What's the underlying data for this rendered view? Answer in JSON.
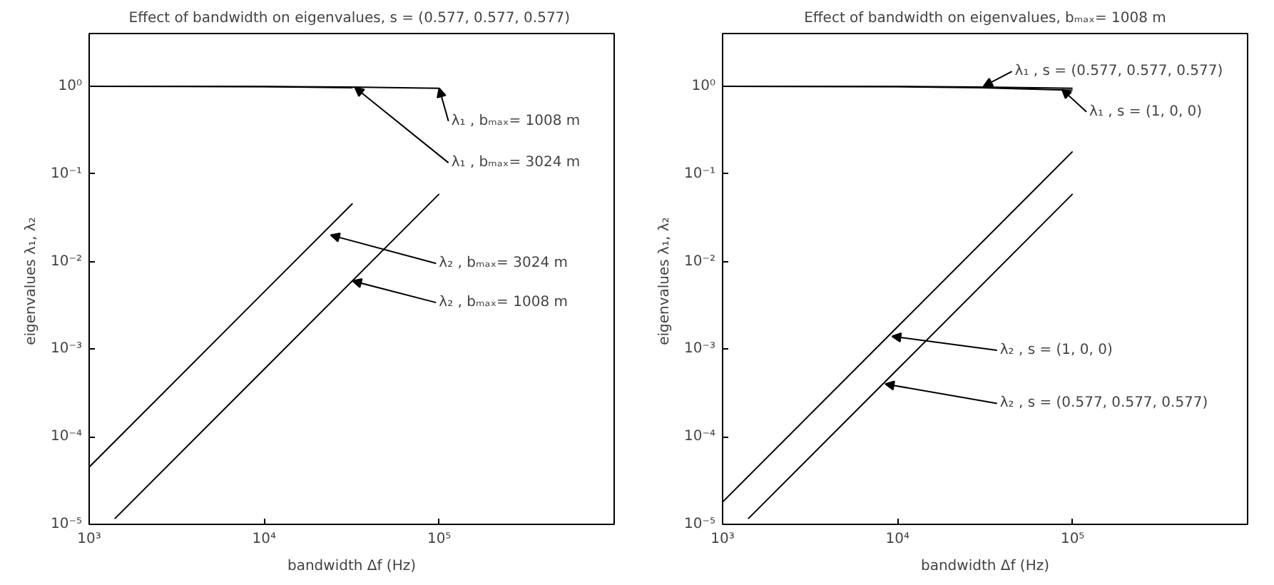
{
  "chart_data": [
    {
      "type": "line",
      "title": "Effect of bandwidth on eigenvalues,  s = (0.577, 0.577, 0.577)",
      "xlabel": "bandwidth Δf (Hz)",
      "ylabel": "eigenvalues  λ₁, λ₂",
      "log": "xy",
      "grid": false,
      "marker": "none",
      "line_style": "solid",
      "xlim": [
        1000,
        1000000
      ],
      "ylim": [
        1e-05,
        4
      ],
      "xticks": [
        {
          "value": 1000,
          "label": "10³"
        },
        {
          "value": 10000,
          "label": "10⁴"
        },
        {
          "value": 100000,
          "label": "10⁵"
        }
      ],
      "yticks": [
        {
          "value": 1e-05,
          "label": "10⁻⁵"
        },
        {
          "value": 0.0001,
          "label": "10⁻⁴"
        },
        {
          "value": 0.001,
          "label": "10⁻³"
        },
        {
          "value": 0.01,
          "label": "10⁻²"
        },
        {
          "value": 0.1,
          "label": "10⁻¹"
        },
        {
          "value": 1,
          "label": "10⁰"
        }
      ],
      "series": [
        {
          "color": "#000000",
          "x": [
            1000,
            10000,
            30000,
            100000
          ],
          "values": [
            1,
            0.995,
            0.98,
            0.95
          ]
        },
        {
          "color": "#000000",
          "x": [
            1000,
            10000,
            32000
          ],
          "values": [
            1,
            0.99,
            0.96
          ]
        },
        {
          "color": "#000000",
          "x": [
            1000,
            10000,
            32000
          ],
          "values": [
            4.5e-05,
            0.0045,
            0.046
          ]
        },
        {
          "color": "#000000",
          "x": [
            1400,
            10000,
            100000
          ],
          "values": [
            1.16e-05,
            0.00059,
            0.059
          ]
        }
      ],
      "annotations": [
        {
          "text": "λ₁ ,   bₘₐₓ= 1008 m",
          "x": 100000,
          "y": 0.95
        },
        {
          "text": "λ₁ ,   bₘₐₓ= 3024 m",
          "x": 33000,
          "y": 0.97
        },
        {
          "text": "λ₂ ,   bₘₐₓ= 3024 m",
          "x": 24000,
          "y": 0.02
        },
        {
          "text": "λ₂ ,   bₘₐₓ= 1008 m",
          "x": 32000,
          "y": 0.006
        }
      ]
    },
    {
      "type": "line",
      "title": "Effect of bandwidth on eigenvalues, bₘₐₓ= 1008 m",
      "xlabel": "bandwidth Δf (Hz)",
      "ylabel": "eigenvalues  λ₁, λ₂",
      "log": "xy",
      "grid": false,
      "marker": "none",
      "line_style": "solid",
      "xlim": [
        1000,
        1000000
      ],
      "ylim": [
        1e-05,
        4
      ],
      "xticks": [
        {
          "value": 1000,
          "label": "10³"
        },
        {
          "value": 10000,
          "label": "10⁴"
        },
        {
          "value": 100000,
          "label": "10⁵"
        }
      ],
      "yticks": [
        {
          "value": 1e-05,
          "label": "10⁻⁵"
        },
        {
          "value": 0.0001,
          "label": "10⁻⁴"
        },
        {
          "value": 0.001,
          "label": "10⁻³"
        },
        {
          "value": 0.01,
          "label": "10⁻²"
        },
        {
          "value": 0.1,
          "label": "10⁻¹"
        },
        {
          "value": 1,
          "label": "10⁰"
        }
      ],
      "series": [
        {
          "color": "#000000",
          "x": [
            1000,
            10000,
            30000,
            100000
          ],
          "values": [
            1,
            0.995,
            0.98,
            0.95
          ]
        },
        {
          "color": "#000000",
          "x": [
            1000,
            10000,
            30000,
            100000
          ],
          "values": [
            1,
            0.99,
            0.96,
            0.9
          ]
        },
        {
          "color": "#000000",
          "x": [
            1000,
            10000,
            100000
          ],
          "values": [
            1.8e-05,
            0.0018,
            0.18
          ]
        },
        {
          "color": "#000000",
          "x": [
            1400,
            10000,
            100000
          ],
          "values": [
            1.16e-05,
            0.00059,
            0.059
          ]
        }
      ],
      "annotations": [
        {
          "text": "λ₁ ,   s = (0.577, 0.577, 0.577)",
          "x": 31000,
          "y": 1.0
        },
        {
          "text": "λ₁ ,   s = (1, 0, 0)",
          "x": 87000,
          "y": 0.92
        },
        {
          "text": "λ₂ ,   s = (1, 0, 0)",
          "x": 9300,
          "y": 0.0014
        },
        {
          "text": "λ₂ ,   s = (0.577, 0.577, 0.577)",
          "x": 8500,
          "y": 0.0004
        }
      ]
    }
  ]
}
